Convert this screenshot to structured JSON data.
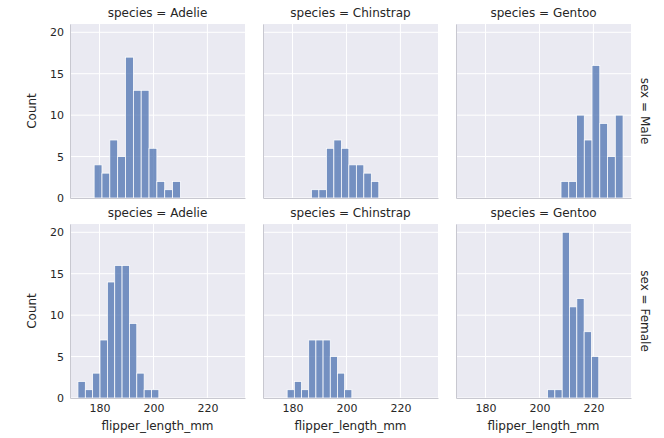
{
  "chart_data": [
    {
      "type": "histogram",
      "title": "species = Adelie",
      "y_label": "Count",
      "bins": [
        178,
        180.91,
        183.82,
        186.73,
        189.64,
        192.55,
        195.45,
        198.36,
        201.27,
        204.18,
        207.09,
        210
      ],
      "values": [
        4,
        3,
        7,
        5,
        17,
        13,
        13,
        6,
        2,
        1,
        2
      ],
      "color": "#4c72b0",
      "xlim": [
        169.05,
        233.95
      ],
      "ylim": [
        0,
        21
      ],
      "xticks": [
        180,
        200,
        220
      ],
      "yticks": [
        0,
        5,
        10,
        15,
        20
      ],
      "grid": true,
      "tick_labels": "y"
    },
    {
      "type": "histogram",
      "title": "species = Chinstrap",
      "bins": [
        187,
        189.78,
        192.56,
        195.33,
        198.11,
        200.89,
        203.67,
        206.44,
        209.22,
        212
      ],
      "values": [
        1,
        1,
        6,
        7,
        6,
        4,
        4,
        3,
        2
      ],
      "color": "#4c72b0",
      "xlim": [
        169.05,
        233.95
      ],
      "ylim": [
        0,
        21
      ],
      "xticks": [
        180,
        200,
        220
      ],
      "yticks": [
        0,
        5,
        10,
        15,
        20
      ],
      "grid": true,
      "tick_labels": false
    },
    {
      "type": "histogram",
      "title": "species = Gentoo",
      "annotations": [
        "sex = Male"
      ],
      "bins": [
        208,
        210.875,
        213.75,
        216.625,
        219.5,
        222.375,
        225.25,
        228.125,
        231
      ],
      "values": [
        2,
        2,
        10,
        7,
        16,
        9,
        5,
        10
      ],
      "color": "#4c72b0",
      "xlim": [
        169.05,
        233.95
      ],
      "ylim": [
        0,
        21
      ],
      "xticks": [
        180,
        200,
        220
      ],
      "yticks": [
        0,
        5,
        10,
        15,
        20
      ],
      "grid": true,
      "tick_labels": false
    },
    {
      "type": "histogram",
      "title": "species = Adelie",
      "x_label": "flipper_length_mm",
      "y_label": "Count",
      "bins": [
        172,
        174.73,
        177.45,
        180.18,
        182.91,
        185.64,
        188.36,
        191.09,
        193.82,
        196.55,
        199.27,
        202
      ],
      "values": [
        2,
        1,
        3,
        7,
        14,
        16,
        16,
        9,
        3,
        1,
        1
      ],
      "color": "#4c72b0",
      "xlim": [
        169.05,
        233.95
      ],
      "ylim": [
        0,
        21
      ],
      "xticks": [
        180,
        200,
        220
      ],
      "yticks": [
        0,
        5,
        10,
        15,
        20
      ],
      "grid": true
    },
    {
      "type": "histogram",
      "title": "species = Chinstrap",
      "x_label": "flipper_length_mm",
      "bins": [
        178,
        180.67,
        183.33,
        186,
        188.67,
        191.33,
        194,
        196.67,
        199.33,
        202
      ],
      "values": [
        1,
        2,
        1,
        7,
        7,
        7,
        5,
        3,
        1
      ],
      "color": "#4c72b0",
      "xlim": [
        169.05,
        233.95
      ],
      "ylim": [
        0,
        21
      ],
      "xticks": [
        180,
        200,
        220
      ],
      "yticks": [
        0,
        5,
        10,
        15,
        20
      ],
      "grid": true,
      "tick_labels": "x"
    },
    {
      "type": "histogram",
      "title": "species = Gentoo",
      "x_label": "flipper_length_mm",
      "annotations": [
        "sex = Female"
      ],
      "bins": [
        203,
        205.71,
        208.43,
        211.14,
        213.86,
        216.57,
        219.29,
        222
      ],
      "values": [
        1,
        1,
        20,
        11,
        12,
        8,
        5
      ],
      "color": "#4c72b0",
      "xlim": [
        169.05,
        233.95
      ],
      "ylim": [
        0,
        21
      ],
      "xticks": [
        180,
        200,
        220
      ],
      "yticks": [
        0,
        5,
        10,
        15,
        20
      ],
      "grid": true,
      "tick_labels": "x"
    }
  ]
}
